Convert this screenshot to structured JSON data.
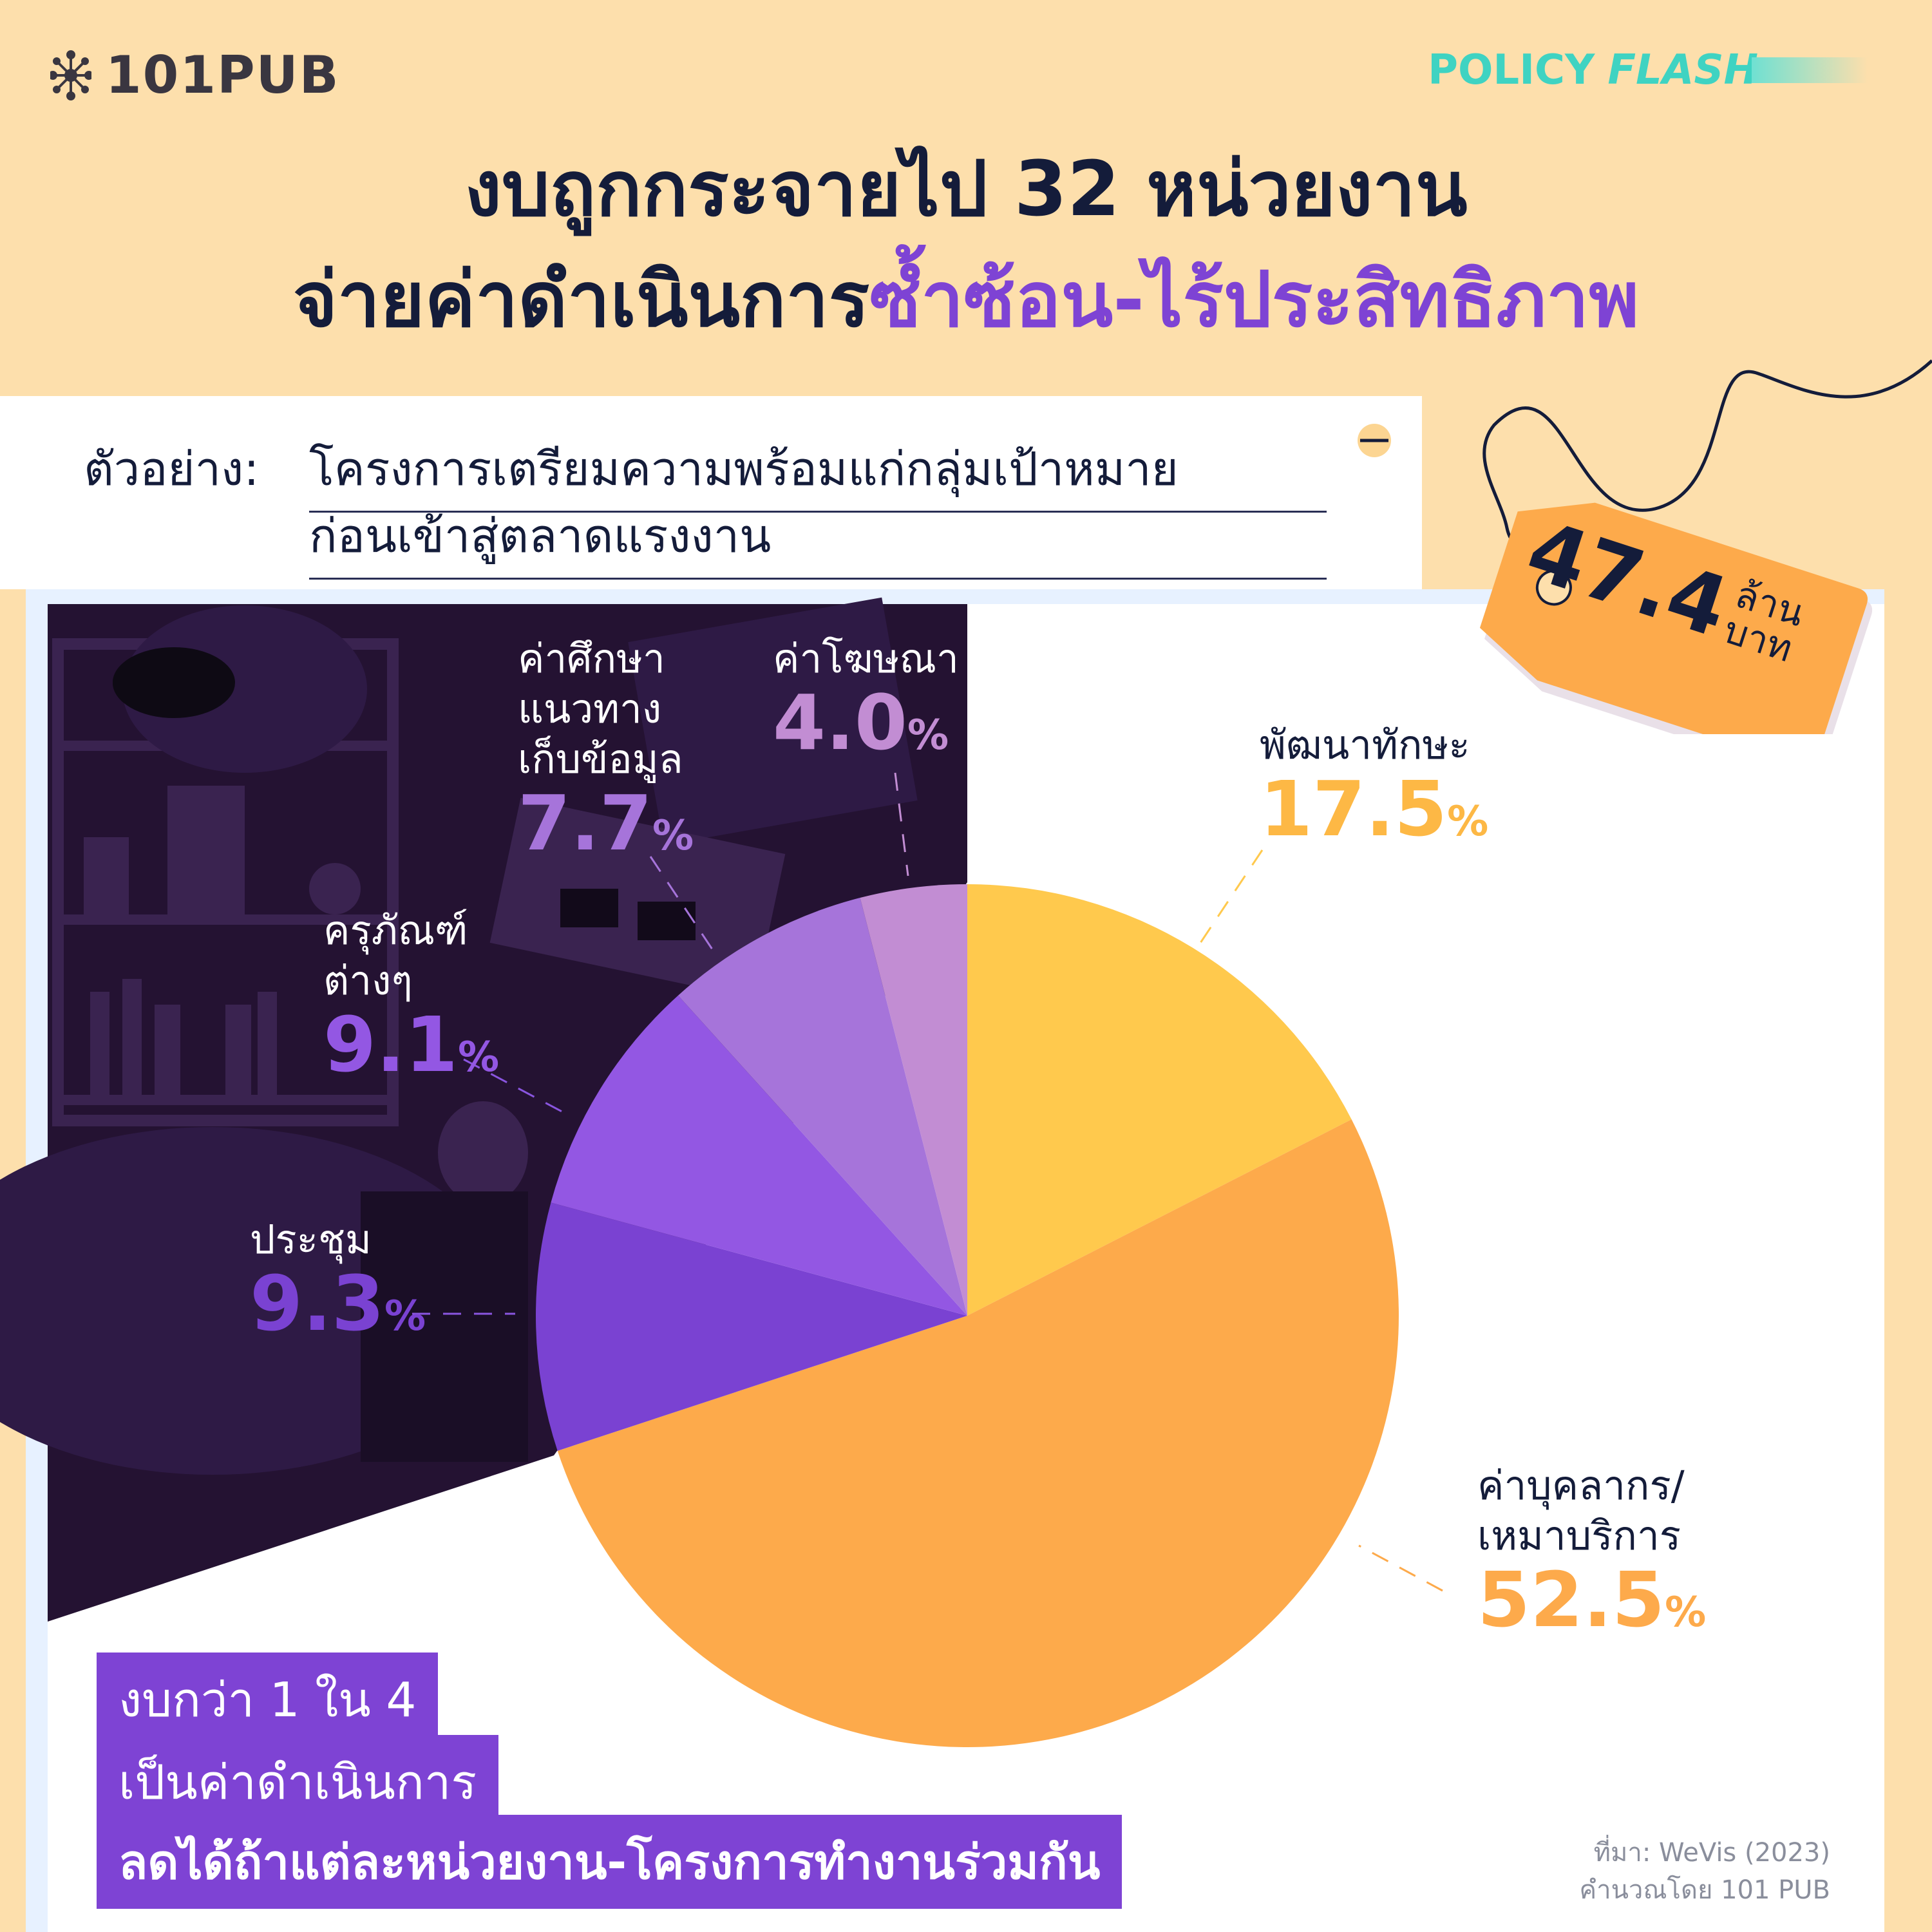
{
  "brand": {
    "logo": "101PUB",
    "series_policy": "POLICY",
    "series_flash": "FLASH"
  },
  "headline": {
    "line1": "งบถูกกระจายไป 32 หน่วยงาน",
    "line2_plain": "จ่ายค่าดำเนินการ",
    "line2_highlight": "ซ้ำซ้อน-ไร้ประสิทธิภาพ"
  },
  "example": {
    "label": "ตัวอย่าง:",
    "line1": "โครงการเตรียมความพร้อมแก่กลุ่มเป้าหมาย",
    "line2": "ก่อนเข้าสู่ตลาดแรงงาน"
  },
  "price_tag": {
    "amount": "47.4",
    "unit_line1": "ล้าน",
    "unit_line2": "บาท"
  },
  "chart_data": {
    "type": "pie",
    "slices": [
      {
        "label": "พัฒนาทักษะ",
        "value": 17.5,
        "display": "17.5",
        "color": "#FFC94D"
      },
      {
        "label": "ค่าบุคลากร/เหมาบริการ",
        "value": 52.5,
        "display": "52.5",
        "color": "#FDAA4B"
      },
      {
        "label": "ประชุม",
        "value": 9.3,
        "display": "9.3",
        "color": "#7A42D2"
      },
      {
        "label": "ครุภัณฑ์ต่างๆ",
        "value": 9.1,
        "display": "9.1",
        "color": "#9357E3"
      },
      {
        "label": "ค่าศึกษาแนวทางเก็บข้อมูล",
        "value": 7.7,
        "display": "7.7",
        "color": "#A674DA"
      },
      {
        "label": "ค่าโฆษณา",
        "value": 4.0,
        "display": "4.0",
        "color": "#C28DD3"
      }
    ],
    "percent_sign": "%",
    "label_lines": {
      "skill": [
        "พัฒนาทักษะ"
      ],
      "staff": [
        "ค่าบุคลากร/",
        "เหมาบริการ"
      ],
      "meeting": [
        "ประชุม"
      ],
      "equipment": [
        "ครุภัณฑ์",
        "ต่างๆ"
      ],
      "study": [
        "ค่าศึกษา",
        "แนวทาง",
        "เก็บข้อมูล"
      ],
      "ads": [
        "ค่าโฆษณา"
      ]
    }
  },
  "note": {
    "line1": "งบกว่า 1 ใน 4",
    "line2": "เป็นค่าดำเนินการ",
    "line3": "ลดได้ถ้าแต่ละหน่วยงาน-โครงการทำงานร่วมกัน"
  },
  "source": {
    "line1": "ที่มา: WeVis (2023)",
    "line2": "คำนวณโดย 101 PUB"
  },
  "colors": {
    "purple_accent": "#7E43D4",
    "dark_navy": "#141C3A",
    "background": "#FDDFAC",
    "teal": "#3FD3C2"
  }
}
